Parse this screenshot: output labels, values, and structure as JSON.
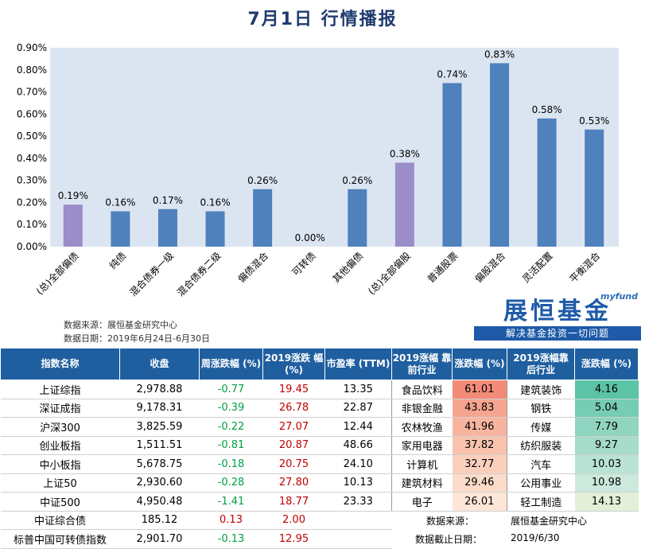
{
  "title": "7月1日  行情播报",
  "chart_data": {
    "type": "bar",
    "categories": [
      "(总)全部偏债",
      "纯债",
      "混合债券一级",
      "混合债券二级",
      "偏债混合",
      "可转债",
      "其他偏债",
      "(总)全部偏股",
      "普通股票",
      "偏股混合",
      "灵活配置",
      "平衡混合"
    ],
    "values": [
      0.19,
      0.16,
      0.17,
      0.16,
      0.26,
      0.0,
      0.26,
      0.38,
      0.74,
      0.83,
      0.58,
      0.53
    ],
    "value_labels": [
      "0.19%",
      "0.16%",
      "0.17%",
      "0.16%",
      "0.26%",
      "0.00%",
      "0.26%",
      "0.38%",
      "0.74%",
      "0.83%",
      "0.58%",
      "0.53%"
    ],
    "highlight": [
      true,
      false,
      false,
      false,
      false,
      false,
      false,
      true,
      false,
      false,
      false,
      false
    ],
    "ylim": [
      0,
      0.9
    ],
    "yticks": [
      "0.00%",
      "0.10%",
      "0.20%",
      "0.30%",
      "0.40%",
      "0.50%",
      "0.60%",
      "0.70%",
      "0.80%",
      "0.90%"
    ],
    "colors": {
      "bar": "#4f81bd",
      "highlight": "#9b8dc8",
      "plot_bg": "#dbe5f1"
    },
    "grid": false,
    "xlabel": "",
    "ylabel": ""
  },
  "chart_notes": {
    "source": "数据来源：展恒基金研究中心",
    "date": "数据日期：2019年6月24日-6月30日"
  },
  "logo": {
    "tag": "myfund",
    "name": "展恒基金",
    "slogan": "解决基金投资一切问题"
  },
  "table": {
    "headers": [
      "指数名称",
      "收盘",
      "周涨跌幅 (%)",
      "2019涨跌 幅 (%)",
      "市盈率 (TTM)",
      "2019涨幅 靠前行业",
      "涨跌幅 (%)",
      "2019涨幅靠 后行业",
      "涨跌幅 (%)"
    ],
    "rows": [
      {
        "name": "上证综指",
        "close": "2,978.88",
        "week": "-0.77",
        "week_dir": "dn",
        "ytd": "19.45",
        "ytd_dir": "up",
        "pe": "13.35",
        "top_ind": "食品饮料",
        "top_pct": "61.01",
        "bot_ind": "建筑装饰",
        "bot_pct": "4.16"
      },
      {
        "name": "深证成指",
        "close": "9,178.31",
        "week": "-0.39",
        "week_dir": "dn",
        "ytd": "26.78",
        "ytd_dir": "up",
        "pe": "22.87",
        "top_ind": "非银金融",
        "top_pct": "43.83",
        "bot_ind": "钢铁",
        "bot_pct": "5.04"
      },
      {
        "name": "沪深300",
        "close": "3,825.59",
        "week": "-0.22",
        "week_dir": "dn",
        "ytd": "27.07",
        "ytd_dir": "up",
        "pe": "12.44",
        "top_ind": "农林牧渔",
        "top_pct": "41.96",
        "bot_ind": "传媒",
        "bot_pct": "7.79"
      },
      {
        "name": "创业板指",
        "close": "1,511.51",
        "week": "-0.81",
        "week_dir": "dn",
        "ytd": "20.87",
        "ytd_dir": "up",
        "pe": "48.66",
        "top_ind": "家用电器",
        "top_pct": "37.82",
        "bot_ind": "纺织服装",
        "bot_pct": "9.27"
      },
      {
        "name": "中小板指",
        "close": "5,678.75",
        "week": "-0.18",
        "week_dir": "dn",
        "ytd": "20.75",
        "ytd_dir": "up",
        "pe": "24.10",
        "top_ind": "计算机",
        "top_pct": "32.77",
        "bot_ind": "汽车",
        "bot_pct": "10.03"
      },
      {
        "name": "上证50",
        "close": "2,930.60",
        "week": "-0.28",
        "week_dir": "dn",
        "ytd": "27.80",
        "ytd_dir": "up",
        "pe": "10.13",
        "top_ind": "建筑材料",
        "top_pct": "29.46",
        "bot_ind": "公用事业",
        "bot_pct": "10.98"
      },
      {
        "name": "中证500",
        "close": "4,950.48",
        "week": "-1.41",
        "week_dir": "dn",
        "ytd": "18.77",
        "ytd_dir": "up",
        "pe": "23.33",
        "top_ind": "电子",
        "top_pct": "26.01",
        "bot_ind": "轻工制造",
        "bot_pct": "14.13"
      },
      {
        "name": "中证综合债",
        "close": "185.12",
        "week": "0.13",
        "week_dir": "up",
        "ytd": "2.00",
        "ytd_dir": "up",
        "pe": ""
      },
      {
        "name": "标普中国可转债指数",
        "close": "2,901.70",
        "week": "-0.13",
        "week_dir": "dn",
        "ytd": "12.95",
        "ytd_dir": "up",
        "pe": ""
      }
    ],
    "top_colors": [
      "#f28b78",
      "#f5a58f",
      "#f7b5a0",
      "#f8c2ad",
      "#fad0bd",
      "#fbdccb",
      "#fde6d8"
    ],
    "bot_colors": [
      "#5cc3a7",
      "#76cdb3",
      "#8fd5bf",
      "#a5dcca",
      "#b9e3d4",
      "#cbe9dc",
      "#e3efd8"
    ],
    "footer_source_label": "数据来源：",
    "footer_source_value": "展恒基金研究中心",
    "footer_date_label": "数据截止日期：",
    "footer_date_value": "2019/6/30"
  }
}
